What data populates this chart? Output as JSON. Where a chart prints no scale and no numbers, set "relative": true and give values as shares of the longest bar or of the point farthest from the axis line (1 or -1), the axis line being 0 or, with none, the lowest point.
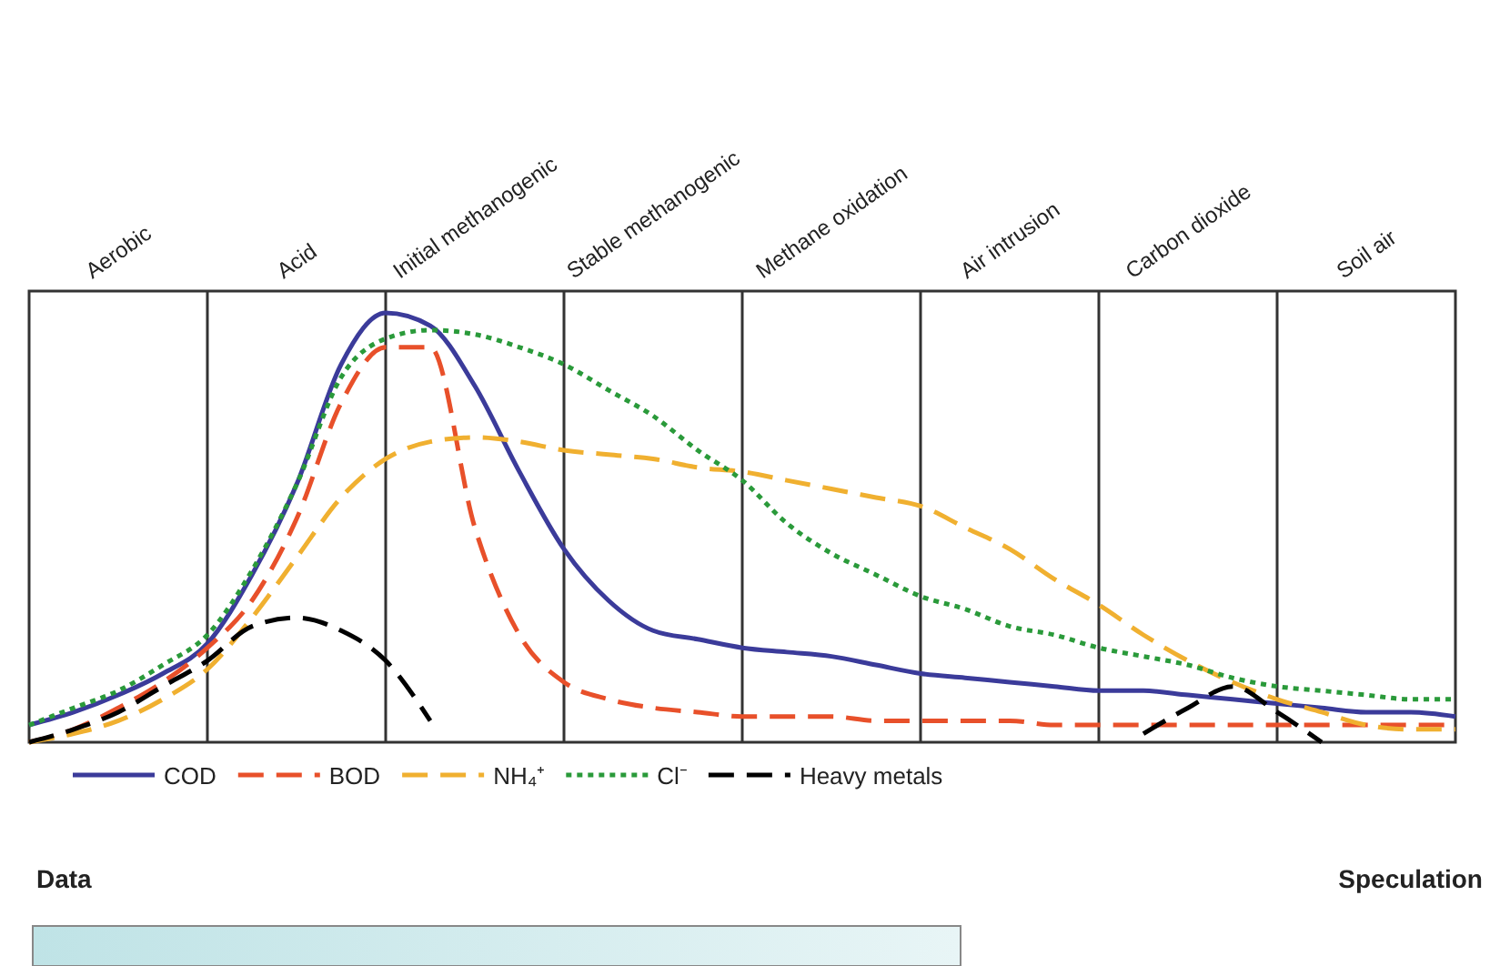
{
  "chart_data": {
    "type": "line",
    "relative": true,
    "categories": [
      null,
      null,
      "Aerobic",
      null,
      null,
      null,
      "Acid",
      null,
      null,
      null,
      "Initial methanogenic",
      null,
      null,
      null,
      "Stable methanogenic",
      null,
      null,
      null,
      "Methane oxidation",
      null,
      null,
      null,
      "Air intrusion",
      null,
      null,
      null,
      "Carbon dioxide",
      null,
      null,
      null,
      "Soil air",
      null,
      null
    ],
    "legend": "bottom",
    "grid": "x",
    "annotations": [
      "Data",
      "Speculation"
    ],
    "series": [
      {
        "name": "COD",
        "color": "#3b3b9a",
        "line_style": "solid",
        "values": [
          0.04,
          0.07,
          0.11,
          0.16,
          0.23,
          0.39,
          0.6,
          0.88,
          1,
          0.97,
          0.83,
          0.63,
          0.45,
          0.33,
          0.26,
          0.24,
          0.22,
          0.21,
          0.2,
          0.18,
          0.16,
          0.15,
          0.14,
          0.13,
          0.12,
          0.12,
          0.11,
          0.1,
          0.09,
          0.08,
          0.07,
          0.07,
          0.06
        ]
      },
      {
        "name": "BOD",
        "color": "#e8502a",
        "line_style": "dashed",
        "values": [
          0,
          0.03,
          0.08,
          0.14,
          0.22,
          0.33,
          0.52,
          0.79,
          0.92,
          0.92,
          0.5,
          0.25,
          0.14,
          0.1,
          0.08,
          0.07,
          0.06,
          0.06,
          0.06,
          0.05,
          0.05,
          0.05,
          0.05,
          0.04,
          0.04,
          0.04,
          0.04,
          0.04,
          0.04,
          0.04,
          0.04,
          0.04,
          0.04
        ]
      },
      {
        "name": "NH₄⁺",
        "color": "#f0b030",
        "line_style": "dashed",
        "values": [
          0,
          0.02,
          0.05,
          0.1,
          0.17,
          0.29,
          0.43,
          0.57,
          0.66,
          0.7,
          0.71,
          0.7,
          0.68,
          0.67,
          0.66,
          0.64,
          0.63,
          0.61,
          0.59,
          0.57,
          0.55,
          0.5,
          0.45,
          0.38,
          0.32,
          0.25,
          0.19,
          0.14,
          0.1,
          0.07,
          0.04,
          0.03,
          0.03
        ]
      },
      {
        "name": "Cl⁻",
        "color": "#2a9a3a",
        "line_style": "dotted",
        "values": [
          0.04,
          0.08,
          0.12,
          0.18,
          0.25,
          0.4,
          0.6,
          0.85,
          0.94,
          0.96,
          0.95,
          0.92,
          0.88,
          0.82,
          0.76,
          0.68,
          0.61,
          0.51,
          0.44,
          0.39,
          0.34,
          0.31,
          0.27,
          0.25,
          0.22,
          0.2,
          0.18,
          0.15,
          0.13,
          0.12,
          0.11,
          0.1,
          0.1
        ]
      },
      {
        "name": "Heavy metals",
        "color": "#000000",
        "line_style": "dashed",
        "values": [
          0,
          0.03,
          0.07,
          0.13,
          0.19,
          0.27,
          0.29,
          0.26,
          0.19,
          0.05,
          null,
          null,
          null,
          null,
          null,
          null,
          null,
          null,
          null,
          null,
          null,
          null,
          null,
          null,
          null,
          0.02,
          0.08,
          0.13,
          0.07,
          0,
          null,
          null,
          null
        ]
      }
    ]
  }
}
